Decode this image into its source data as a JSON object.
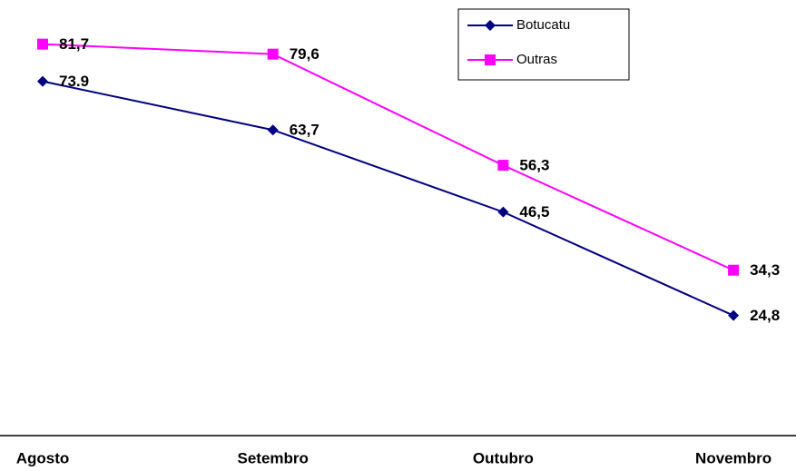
{
  "chart_data": {
    "type": "line",
    "categories": [
      "Agosto",
      "Setembro",
      "Outubro",
      "Novembro"
    ],
    "series": [
      {
        "name": "Botucatu",
        "color": "#000080",
        "marker": "diamond",
        "values": [
          73.9,
          63.7,
          46.5,
          24.8
        ],
        "value_labels": [
          "73.9",
          "63,7",
          "46,5",
          "24,8"
        ]
      },
      {
        "name": "Outras",
        "color": "#ff00ff",
        "marker": "square",
        "values": [
          81.7,
          79.6,
          56.3,
          34.3
        ],
        "value_labels": [
          "81,7",
          "79,6",
          "56,3",
          "34,3"
        ]
      }
    ],
    "ylim": [
      0,
      90
    ],
    "legend": "top-right"
  }
}
